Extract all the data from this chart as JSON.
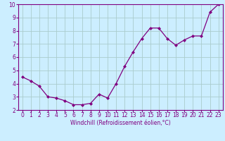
{
  "x": [
    0,
    1,
    2,
    3,
    4,
    5,
    6,
    7,
    8,
    9,
    10,
    11,
    12,
    13,
    14,
    15,
    16,
    17,
    18,
    19,
    20,
    21,
    22,
    23
  ],
  "y": [
    4.5,
    4.2,
    3.8,
    3.0,
    2.9,
    2.7,
    2.4,
    2.4,
    2.5,
    3.2,
    2.9,
    4.0,
    5.3,
    6.4,
    7.4,
    8.2,
    8.2,
    7.4,
    6.9,
    7.3,
    7.6,
    7.6,
    9.4,
    10.0
  ],
  "line_color": "#800080",
  "marker": "D",
  "marker_size": 2.0,
  "bg_color": "#cceeff",
  "grid_color": "#aacccc",
  "xlabel": "Windchill (Refroidissement éolien,°C)",
  "xlim": [
    -0.5,
    23.5
  ],
  "ylim": [
    2,
    10
  ],
  "yticks": [
    2,
    3,
    4,
    5,
    6,
    7,
    8,
    9,
    10
  ],
  "xticks": [
    0,
    1,
    2,
    3,
    4,
    5,
    6,
    7,
    8,
    9,
    10,
    11,
    12,
    13,
    14,
    15,
    16,
    17,
    18,
    19,
    20,
    21,
    22,
    23
  ],
  "tick_color": "#800080",
  "label_color": "#800080",
  "spine_color": "#800080",
  "tick_fontsize": 5.5,
  "xlabel_fontsize": 5.5
}
